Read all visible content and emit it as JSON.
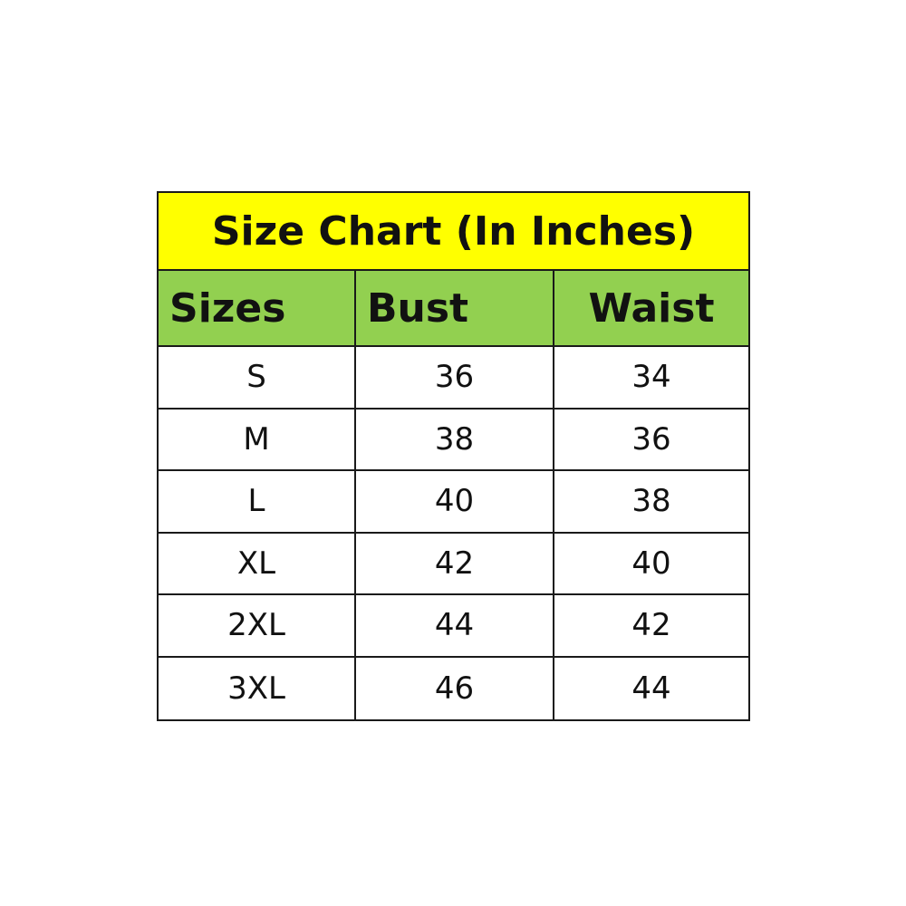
{
  "chart_data": {
    "type": "table",
    "title": "Size Chart (In Inches)",
    "columns": [
      "Sizes",
      "Bust",
      "Waist"
    ],
    "rows": [
      [
        "S",
        "36",
        "34"
      ],
      [
        "M",
        "38",
        "36"
      ],
      [
        "L",
        "40",
        "38"
      ],
      [
        "XL",
        "42",
        "40"
      ],
      [
        "2XL",
        "44",
        "42"
      ],
      [
        "3XL",
        "46",
        "44"
      ]
    ],
    "colors": {
      "title_bg": "#FFFF00",
      "header_bg": "#92D050",
      "border": "#1a1a1a"
    }
  }
}
